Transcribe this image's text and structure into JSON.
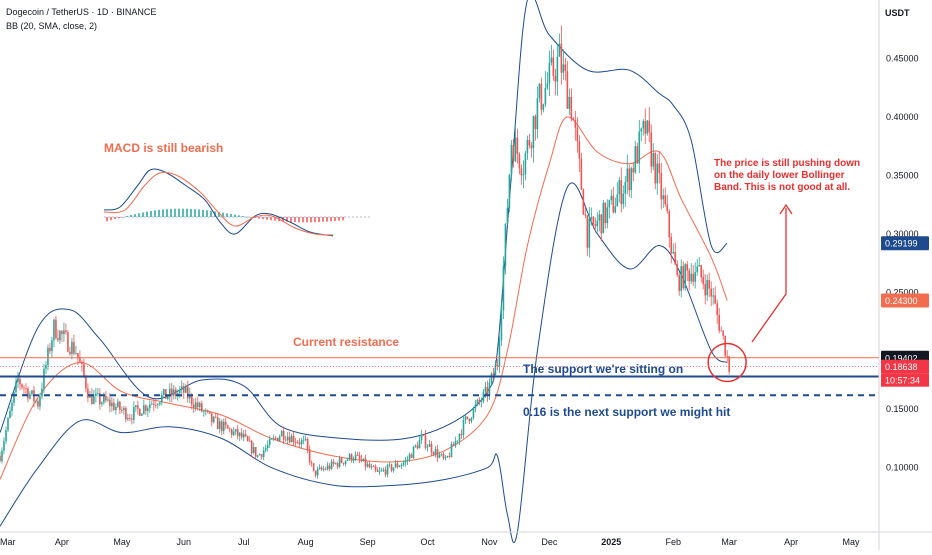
{
  "header": {
    "symbol_line": "Dogecoin / TetherUS · 1D · BINANCE",
    "indicator_line": "BB (20, SMA, close, 2)"
  },
  "price_axis": {
    "currency": "USDT",
    "tick_labels": [
      "0.45000",
      "0.40000",
      "0.35000",
      "0.30000",
      "0.25000",
      "0.15000",
      "0.10000"
    ],
    "price_tags": [
      {
        "label": "0.29199",
        "price": 0.29199,
        "color": "#1e4b8f"
      },
      {
        "label": "0.24300",
        "price": 0.243,
        "color": "#f26d4f"
      },
      {
        "label": "0.19402",
        "price": 0.19402,
        "color": "#131722"
      },
      {
        "label": "0.18638",
        "price": 0.18638,
        "color": "#f23645"
      }
    ],
    "countdown": "10:57:34"
  },
  "time_axis": {
    "labels": [
      "Mar",
      "Apr",
      "May",
      "Jun",
      "Jul",
      "Aug",
      "Sep",
      "Oct",
      "Nov",
      "Dec",
      "2025",
      "Feb",
      "Mar",
      "Apr",
      "May"
    ]
  },
  "annotations": {
    "macd": "MACD is still  bearish",
    "resistance": "Current resistance",
    "support": "The support we're sitting on",
    "next_support": "0.16 is the next support we might hit",
    "note": "The price is still pushing down\non the daily lower Bollinger\nBand. This is not good at all."
  },
  "colors": {
    "bull": "#26a69a",
    "bear": "#ef5350",
    "band": "#1e4b8f",
    "basis": "#f26d4f",
    "resistance": "#f26d4f",
    "support": "#1e4b8f",
    "note": "#e8302f"
  },
  "chart_data": {
    "type": "candlestick",
    "symbol": "DOGE/USDT",
    "timeframe": "1D",
    "exchange": "BINANCE",
    "indicator": "BB (20, SMA, close, 2)",
    "ylim": [
      0.045,
      0.5
    ],
    "x_range": [
      "2024-03-01",
      "2025-05-15"
    ],
    "last_price": 0.18638,
    "levels": {
      "resistance": 0.19402,
      "support": 0.178,
      "next_support": 0.162
    },
    "close_path": [
      [
        "2024-03-01",
        0.11
      ],
      [
        "2024-03-10",
        0.175
      ],
      [
        "2024-03-20",
        0.155
      ],
      [
        "2024-03-28",
        0.22
      ],
      [
        "2024-04-08",
        0.2
      ],
      [
        "2024-04-15",
        0.16
      ],
      [
        "2024-04-25",
        0.155
      ],
      [
        "2024-05-05",
        0.145
      ],
      [
        "2024-05-20",
        0.16
      ],
      [
        "2024-06-01",
        0.165
      ],
      [
        "2024-06-15",
        0.14
      ],
      [
        "2024-07-01",
        0.125
      ],
      [
        "2024-07-08",
        0.11
      ],
      [
        "2024-07-20",
        0.13
      ],
      [
        "2024-08-01",
        0.12
      ],
      [
        "2024-08-05",
        0.095
      ],
      [
        "2024-08-25",
        0.11
      ],
      [
        "2024-09-06",
        0.095
      ],
      [
        "2024-09-20",
        0.105
      ],
      [
        "2024-09-28",
        0.125
      ],
      [
        "2024-10-10",
        0.105
      ],
      [
        "2024-10-20",
        0.14
      ],
      [
        "2024-10-31",
        0.165
      ],
      [
        "2024-11-05",
        0.19
      ],
      [
        "2024-11-12",
        0.38
      ],
      [
        "2024-11-18",
        0.36
      ],
      [
        "2024-11-25",
        0.41
      ],
      [
        "2024-12-06",
        0.45
      ],
      [
        "2024-12-12",
        0.41
      ],
      [
        "2024-12-20",
        0.3
      ],
      [
        "2024-12-31",
        0.32
      ],
      [
        "2025-01-10",
        0.35
      ],
      [
        "2025-01-18",
        0.39
      ],
      [
        "2025-01-28",
        0.32
      ],
      [
        "2025-02-03",
        0.26
      ],
      [
        "2025-02-12",
        0.27
      ],
      [
        "2025-02-20",
        0.25
      ],
      [
        "2025-02-26",
        0.21
      ],
      [
        "2025-03-01",
        0.18638
      ]
    ],
    "bb_upper_path": [
      [
        "2024-03-01",
        0.13
      ],
      [
        "2024-03-20",
        0.22
      ],
      [
        "2024-04-05",
        0.235
      ],
      [
        "2024-04-20",
        0.21
      ],
      [
        "2024-05-15",
        0.16
      ],
      [
        "2024-06-10",
        0.175
      ],
      [
        "2024-07-01",
        0.17
      ],
      [
        "2024-07-20",
        0.135
      ],
      [
        "2024-08-20",
        0.125
      ],
      [
        "2024-09-20",
        0.125
      ],
      [
        "2024-10-15",
        0.14
      ],
      [
        "2024-10-31",
        0.165
      ],
      [
        "2024-11-05",
        0.2
      ],
      [
        "2024-11-12",
        0.35
      ],
      [
        "2024-11-20",
        0.5
      ],
      [
        "2024-12-01",
        0.47
      ],
      [
        "2024-12-20",
        0.44
      ],
      [
        "2025-01-10",
        0.44
      ],
      [
        "2025-01-25",
        0.42
      ],
      [
        "2025-02-01",
        0.41
      ],
      [
        "2025-02-10",
        0.38
      ],
      [
        "2025-02-20",
        0.29
      ],
      [
        "2025-02-28",
        0.29199
      ]
    ],
    "bb_basis_path": [
      [
        "2024-03-01",
        0.09
      ],
      [
        "2024-03-20",
        0.16
      ],
      [
        "2024-04-10",
        0.19
      ],
      [
        "2024-05-01",
        0.165
      ],
      [
        "2024-05-25",
        0.155
      ],
      [
        "2024-06-20",
        0.145
      ],
      [
        "2024-07-15",
        0.125
      ],
      [
        "2024-08-15",
        0.11
      ],
      [
        "2024-09-15",
        0.105
      ],
      [
        "2024-10-10",
        0.115
      ],
      [
        "2024-10-31",
        0.145
      ],
      [
        "2024-11-10",
        0.2
      ],
      [
        "2024-11-20",
        0.29
      ],
      [
        "2024-12-01",
        0.36
      ],
      [
        "2024-12-10",
        0.4
      ],
      [
        "2024-12-25",
        0.37
      ],
      [
        "2025-01-10",
        0.36
      ],
      [
        "2025-01-25",
        0.37
      ],
      [
        "2025-02-05",
        0.33
      ],
      [
        "2025-02-20",
        0.28
      ],
      [
        "2025-02-28",
        0.243
      ]
    ],
    "bb_lower_path": [
      [
        "2024-03-01",
        0.05
      ],
      [
        "2024-03-20",
        0.1
      ],
      [
        "2024-04-10",
        0.14
      ],
      [
        "2024-05-01",
        0.13
      ],
      [
        "2024-05-25",
        0.135
      ],
      [
        "2024-06-20",
        0.125
      ],
      [
        "2024-07-15",
        0.1
      ],
      [
        "2024-08-15",
        0.085
      ],
      [
        "2024-09-15",
        0.085
      ],
      [
        "2024-10-10",
        0.09
      ],
      [
        "2024-10-31",
        0.1
      ],
      [
        "2024-11-05",
        0.11
      ],
      [
        "2024-11-10",
        0.06
      ],
      [
        "2024-11-15",
        0.045
      ],
      [
        "2024-11-25",
        0.2
      ],
      [
        "2024-12-10",
        0.34
      ],
      [
        "2024-12-25",
        0.3
      ],
      [
        "2025-01-10",
        0.27
      ],
      [
        "2025-01-25",
        0.29
      ],
      [
        "2025-02-05",
        0.265
      ],
      [
        "2025-02-20",
        0.2
      ],
      [
        "2025-02-28",
        0.19
      ]
    ]
  }
}
